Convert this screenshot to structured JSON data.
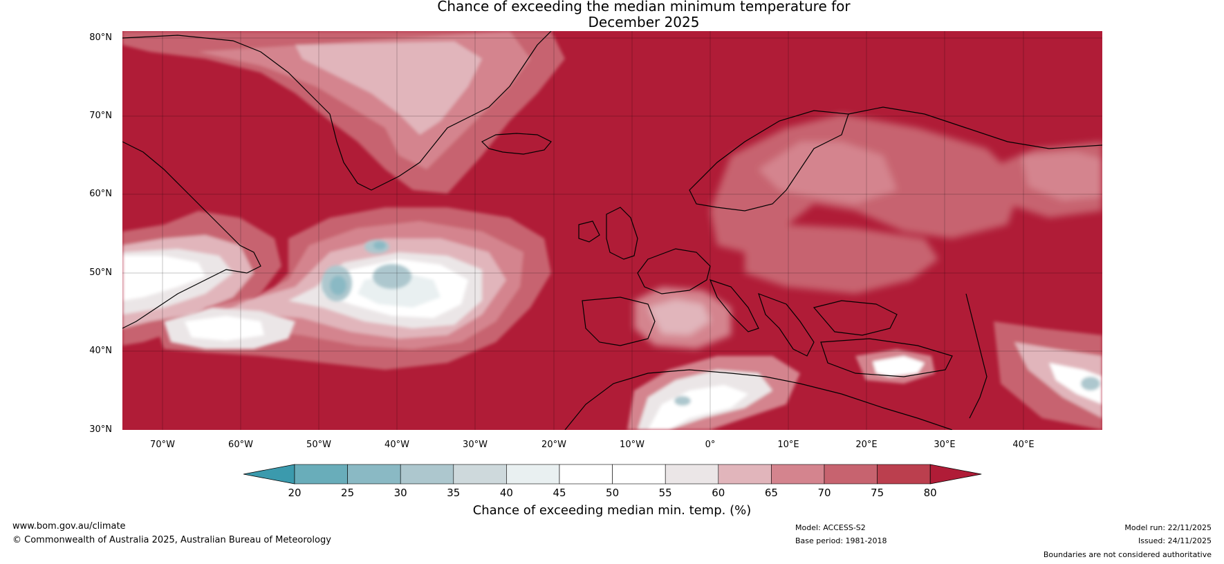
{
  "title_line1": "Chance of exceeding the median minimum temperature for",
  "title_line2": "December 2025",
  "lat_ticks": [
    "80°N",
    "70°N",
    "60°N",
    "50°N",
    "40°N",
    "30°N"
  ],
  "lon_ticks": [
    "70°W",
    "60°W",
    "50°W",
    "40°W",
    "30°W",
    "20°W",
    "10°W",
    "0°",
    "10°E",
    "20°E",
    "30°E",
    "40°E"
  ],
  "colorbar": {
    "labels": [
      "20",
      "25",
      "30",
      "35",
      "40",
      "45",
      "50",
      "55",
      "60",
      "65",
      "70",
      "75",
      "80"
    ],
    "colors": [
      "#3b9aad",
      "#69adba",
      "#8ab9c4",
      "#adc7ce",
      "#ced9dc",
      "#e9f0f1",
      "#ffffff",
      "#ffffff",
      "#ebe6e7",
      "#e1b5bb",
      "#d4848e",
      "#c7636f",
      "#bb3f4e",
      "#b01c37"
    ],
    "title": "Chance of exceeding median min. temp. (%)"
  },
  "footer": {
    "website": "www.bom.gov.au/climate",
    "copyright": "© Commonwealth of Australia 2025, Australian Bureau of Meteorology",
    "model": "Model: ACCESS-S2",
    "base_period": "Base period: 1981-2018",
    "model_run": "Model run: 22/11/2025",
    "issued": "Issued: 24/11/2025",
    "disclaimer": "Boundaries are not considered authoritative"
  },
  "colors": {
    "c80": "#b01c37",
    "c75": "#bb3f4e",
    "c70": "#c7636f",
    "c65": "#d4848e",
    "c60": "#e1b5bb",
    "c55": "#ebe6e7",
    "c50": "#ffffff",
    "c45": "#e9f0f1",
    "c40": "#ced9dc",
    "c35": "#adc7ce",
    "c30": "#8ab9c4",
    "c25": "#69adba"
  }
}
